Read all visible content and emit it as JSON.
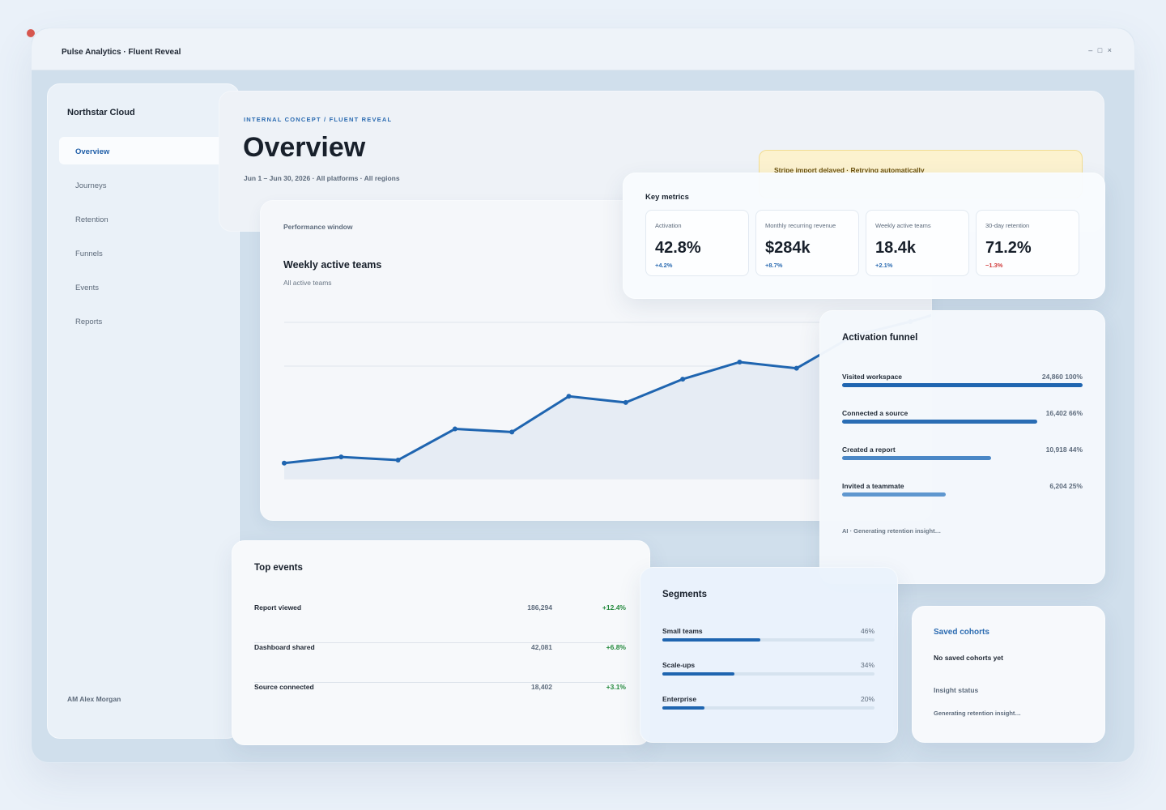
{
  "window": {
    "title": "Pulse Analytics · Fluent Reveal",
    "controls": "– □ ×"
  },
  "sidebar": {
    "brand": "Northstar Cloud",
    "items": [
      {
        "label": "Overview",
        "active": true
      },
      {
        "label": "Journeys",
        "active": false
      },
      {
        "label": "Retention",
        "active": false
      },
      {
        "label": "Funnels",
        "active": false
      },
      {
        "label": "Events",
        "active": false
      },
      {
        "label": "Reports",
        "active": false
      }
    ],
    "user": "AM Alex Morgan"
  },
  "header": {
    "eyebrow": "INTERNAL CONCEPT / FLUENT REVEAL",
    "title": "Overview",
    "subtitle": "Jun 1 – Jun 30, 2026 · All platforms · All regions",
    "alert": "Stripe import delayed · Retrying automatically"
  },
  "chart": {
    "window_label": "Performance window",
    "title": "Weekly active teams",
    "subtitle": "All active teams"
  },
  "chart_data": {
    "type": "line",
    "series": [
      {
        "values": [
          1.0,
          1.4,
          1.2,
          3.2,
          3.0,
          5.3,
          4.9,
          6.4,
          7.5,
          7.1,
          9.2,
          10.1,
          11.2
        ]
      }
    ],
    "ylim": [
      0,
      12
    ],
    "grid": true,
    "color": "#1f65b0"
  },
  "metrics": {
    "title": "Key metrics",
    "items": [
      {
        "label": "Activation",
        "value": "42.8%",
        "delta": "+4.2%",
        "positive": true
      },
      {
        "label": "Monthly recurring revenue",
        "value": "$284k",
        "delta": "+8.7%",
        "positive": true
      },
      {
        "label": "Weekly active teams",
        "value": "18.4k",
        "delta": "+2.1%",
        "positive": true
      },
      {
        "label": "30-day retention",
        "value": "71.2%",
        "delta": "−1.3%",
        "positive": false
      }
    ]
  },
  "funnel": {
    "title": "Activation funnel",
    "steps": [
      {
        "label": "Visited workspace",
        "value": "24,860 100%",
        "fraction": 1.0,
        "color": "#1f65b0"
      },
      {
        "label": "Connected a source",
        "value": "16,402 66%",
        "fraction": 0.81,
        "color": "#2a6db4"
      },
      {
        "label": "Created a report",
        "value": "10,918 44%",
        "fraction": 0.62,
        "color": "#4a87c6"
      },
      {
        "label": "Invited a teammate",
        "value": "6,204 25%",
        "fraction": 0.43,
        "color": "#5f97cf"
      }
    ],
    "ai_status": "AI · Generating retention insight…"
  },
  "events": {
    "title": "Top events",
    "rows": [
      {
        "name": "Report viewed",
        "count": "186,294",
        "delta": "+12.4%"
      },
      {
        "name": "Dashboard shared",
        "count": "42,081",
        "delta": "+6.8%"
      },
      {
        "name": "Source connected",
        "count": "18,402",
        "delta": "+3.1%"
      }
    ]
  },
  "segments": {
    "title": "Segments",
    "rows": [
      {
        "label": "Small teams",
        "value": "46%",
        "fraction": 0.46
      },
      {
        "label": "Scale-ups",
        "value": "34%",
        "fraction": 0.34
      },
      {
        "label": "Enterprise",
        "value": "20%",
        "fraction": 0.2
      }
    ]
  },
  "cohorts": {
    "title": "Saved cohorts",
    "empty": "No saved cohorts yet",
    "status_label": "Insight status",
    "status": "Generating retention insight…"
  }
}
